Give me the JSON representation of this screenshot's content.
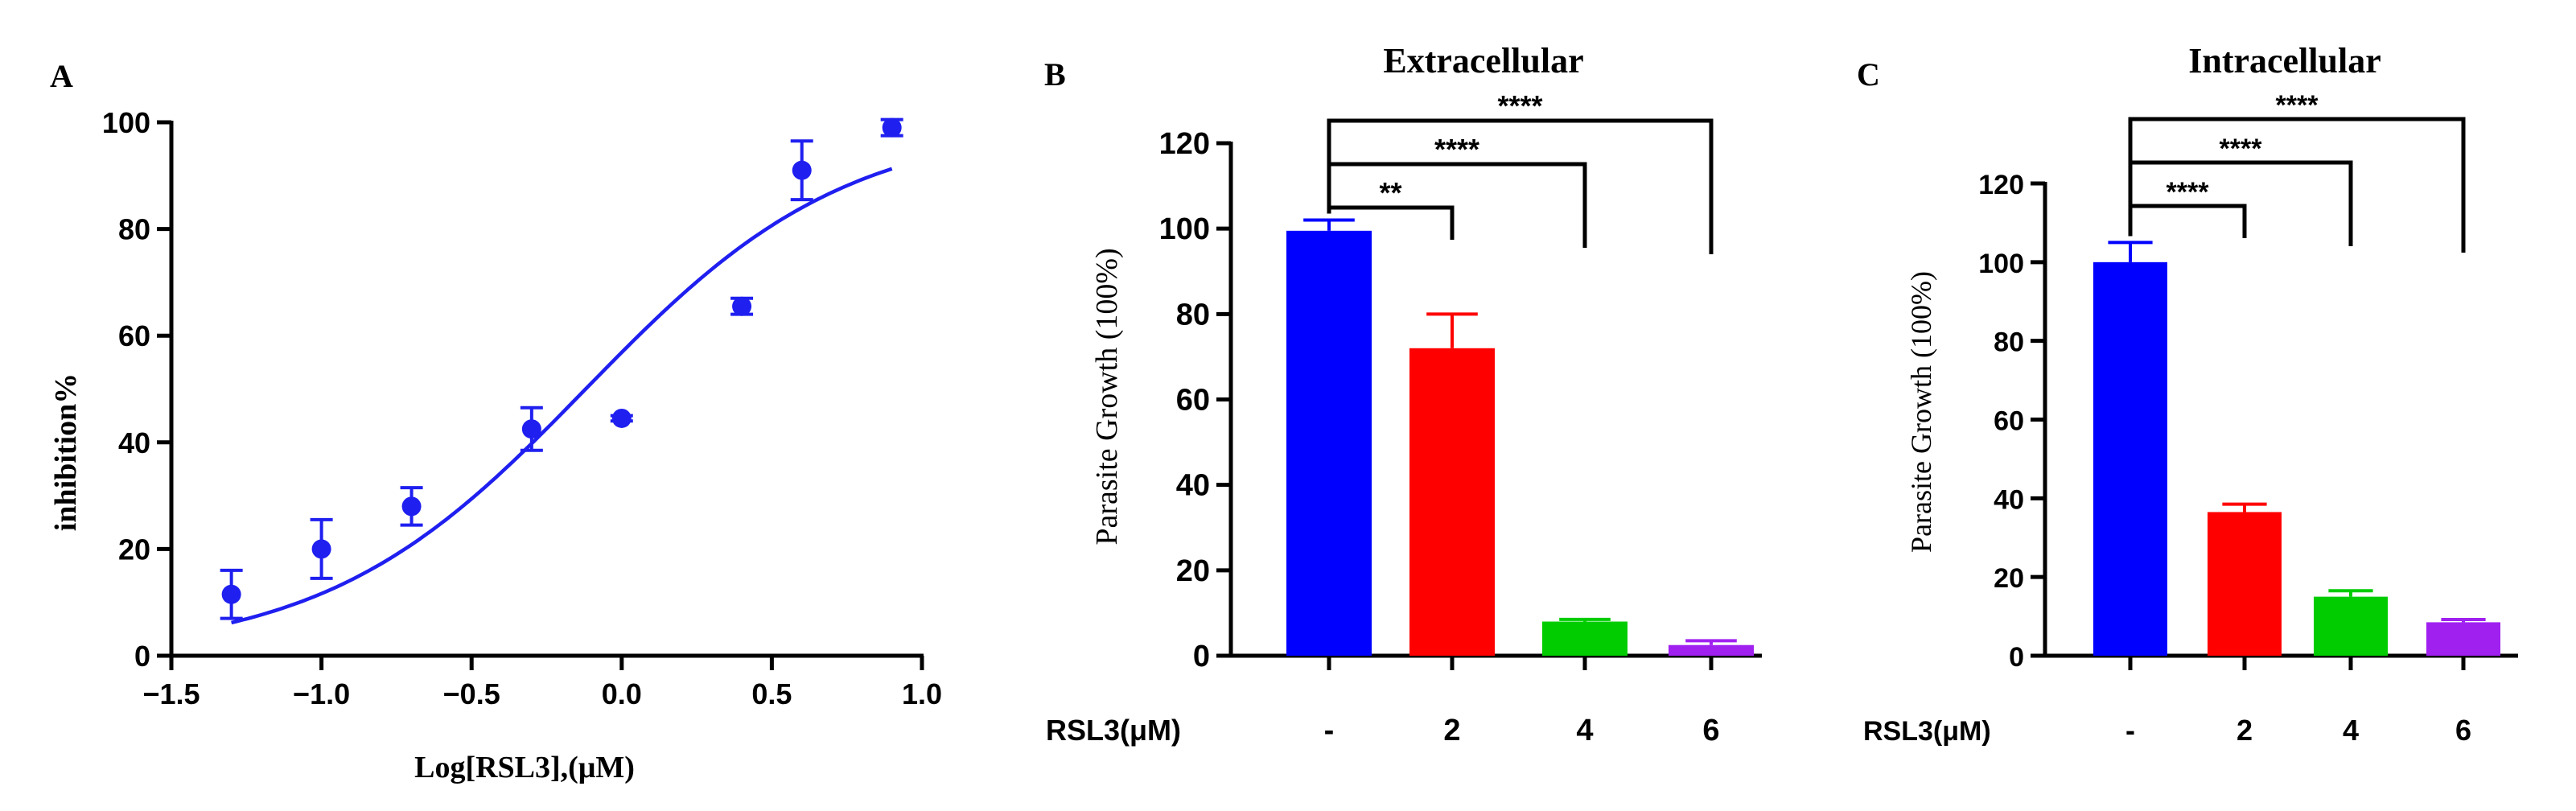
{
  "colors": {
    "axis": "#000000",
    "scatter": "#1f1ff0",
    "bar_blue": "#0000ff",
    "bar_red": "#ff0000",
    "bar_green": "#00cc00",
    "bar_purple": "#a020f0"
  },
  "chart_data": [
    {
      "panel_label": "A",
      "type": "scatter",
      "xlabel": "Log[RSL3],(μM)",
      "ylabel": "inhibition%",
      "xlim": [
        -1.5,
        1.0
      ],
      "ylim": [
        0,
        100
      ],
      "xticks": [
        -1.5,
        -1.0,
        -0.5,
        0.0,
        0.5,
        1.0
      ],
      "xtick_labels": [
        "−1.5",
        "−1.0",
        "−0.5",
        "0.0",
        "0.5",
        "1.0"
      ],
      "yticks": [
        0,
        20,
        40,
        60,
        80,
        100
      ],
      "ytick_labels": [
        "0",
        "20",
        "40",
        "60",
        "80",
        "100"
      ],
      "points": [
        {
          "x": -1.3,
          "y": 11.5,
          "err": 4.5
        },
        {
          "x": -1.0,
          "y": 20,
          "err": 5.5
        },
        {
          "x": -0.7,
          "y": 28,
          "err": 3.5
        },
        {
          "x": -0.3,
          "y": 42.5,
          "err": 4
        },
        {
          "x": 0.0,
          "y": 44.5,
          "err": 0.5
        },
        {
          "x": 0.4,
          "y": 65.5,
          "err": 1.5
        },
        {
          "x": 0.6,
          "y": 91,
          "err": 5.5
        },
        {
          "x": 0.9,
          "y": 99,
          "err": 1.5
        }
      ],
      "fit": {
        "bottom": 0,
        "top": 100,
        "logIC50": -0.12,
        "hill": 1.0
      }
    },
    {
      "panel_label": "B",
      "type": "bar",
      "title": "Extracellular",
      "ylabel": "Parasite Growth (100%)",
      "row_label": "RSL3(μM)",
      "categories": [
        "-",
        "2",
        "4",
        "6"
      ],
      "values": [
        99.5,
        72,
        8,
        2.5
      ],
      "errors": [
        2.5,
        8,
        0.5,
        1
      ],
      "ylim": [
        0,
        120
      ],
      "yticks": [
        0,
        20,
        40,
        60,
        80,
        100,
        120
      ],
      "ytick_labels": [
        "0",
        "20",
        "40",
        "60",
        "80",
        "100",
        "120"
      ],
      "significance": [
        {
          "from": 0,
          "to": 1,
          "label": "**"
        },
        {
          "from": 0,
          "to": 2,
          "label": "****"
        },
        {
          "from": 0,
          "to": 3,
          "label": "****"
        }
      ]
    },
    {
      "panel_label": "C",
      "type": "bar",
      "title": "Intracellular",
      "ylabel": "Parasite Growth (100%)",
      "row_label": "RSL3(μM)",
      "categories": [
        "-",
        "2",
        "4",
        "6"
      ],
      "values": [
        100,
        36.5,
        15,
        8.5
      ],
      "errors": [
        5,
        2,
        1.5,
        0.7
      ],
      "ylim": [
        0,
        120
      ],
      "yticks": [
        0,
        20,
        40,
        60,
        80,
        100,
        120
      ],
      "ytick_labels": [
        "0",
        "20",
        "40",
        "60",
        "80",
        "100",
        "120"
      ],
      "significance": [
        {
          "from": 0,
          "to": 1,
          "label": "****"
        },
        {
          "from": 0,
          "to": 2,
          "label": "****"
        },
        {
          "from": 0,
          "to": 3,
          "label": "****"
        }
      ]
    }
  ]
}
